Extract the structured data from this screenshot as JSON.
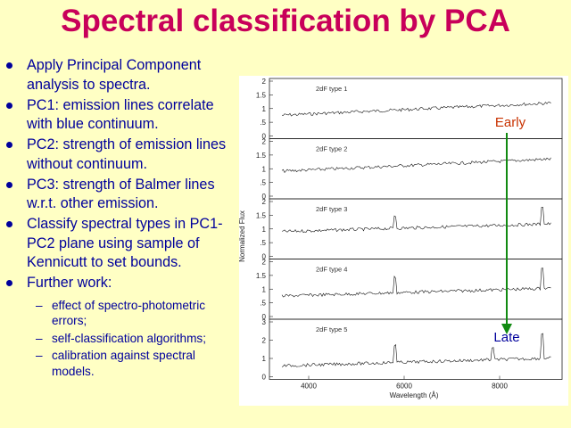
{
  "slide": {
    "title": "Spectral classification by PCA",
    "bullets": [
      "Apply Principal Component analysis to spectra.",
      "PC1: emission lines correlate with blue continuum.",
      "PC2: strength of emission lines without continuum.",
      "PC3: strength of Balmer lines w.r.t. other emission.",
      "Classify spectral types in PC1-PC2 plane using sample of Kennicutt to set bounds.",
      "Further work:"
    ],
    "sub_bullets": [
      "effect of spectro-photometric errors;",
      "self-classification algorithms;",
      "calibration against  spectral models."
    ]
  },
  "figure": {
    "panels": [
      {
        "label": "2dF type 1",
        "ticks": [
          "2",
          "1.5",
          "1",
          ".5",
          "0"
        ]
      },
      {
        "label": "2dF type 2",
        "ticks": [
          "2",
          "1.5",
          "1",
          ".5",
          "0"
        ]
      },
      {
        "label": "2dF type 3",
        "ticks": [
          "2",
          "1.5",
          "1",
          ".5",
          "0"
        ]
      },
      {
        "label": "2dF type 4",
        "ticks": [
          "2",
          "1.5",
          "1",
          ".5",
          "0"
        ]
      },
      {
        "label": "2dF type 5",
        "ticks": [
          "3",
          "2",
          "1",
          "0"
        ]
      }
    ],
    "ylabel": "Normalized Flux",
    "xlabel": "Wavelength (Å)",
    "xticks": [
      "4000",
      "6000",
      "8000"
    ],
    "arrow": {
      "start_label": "Early",
      "end_label": "Late",
      "color": "#118a11"
    },
    "start_label_color": "#c83200",
    "end_label_color": "#00009c"
  }
}
